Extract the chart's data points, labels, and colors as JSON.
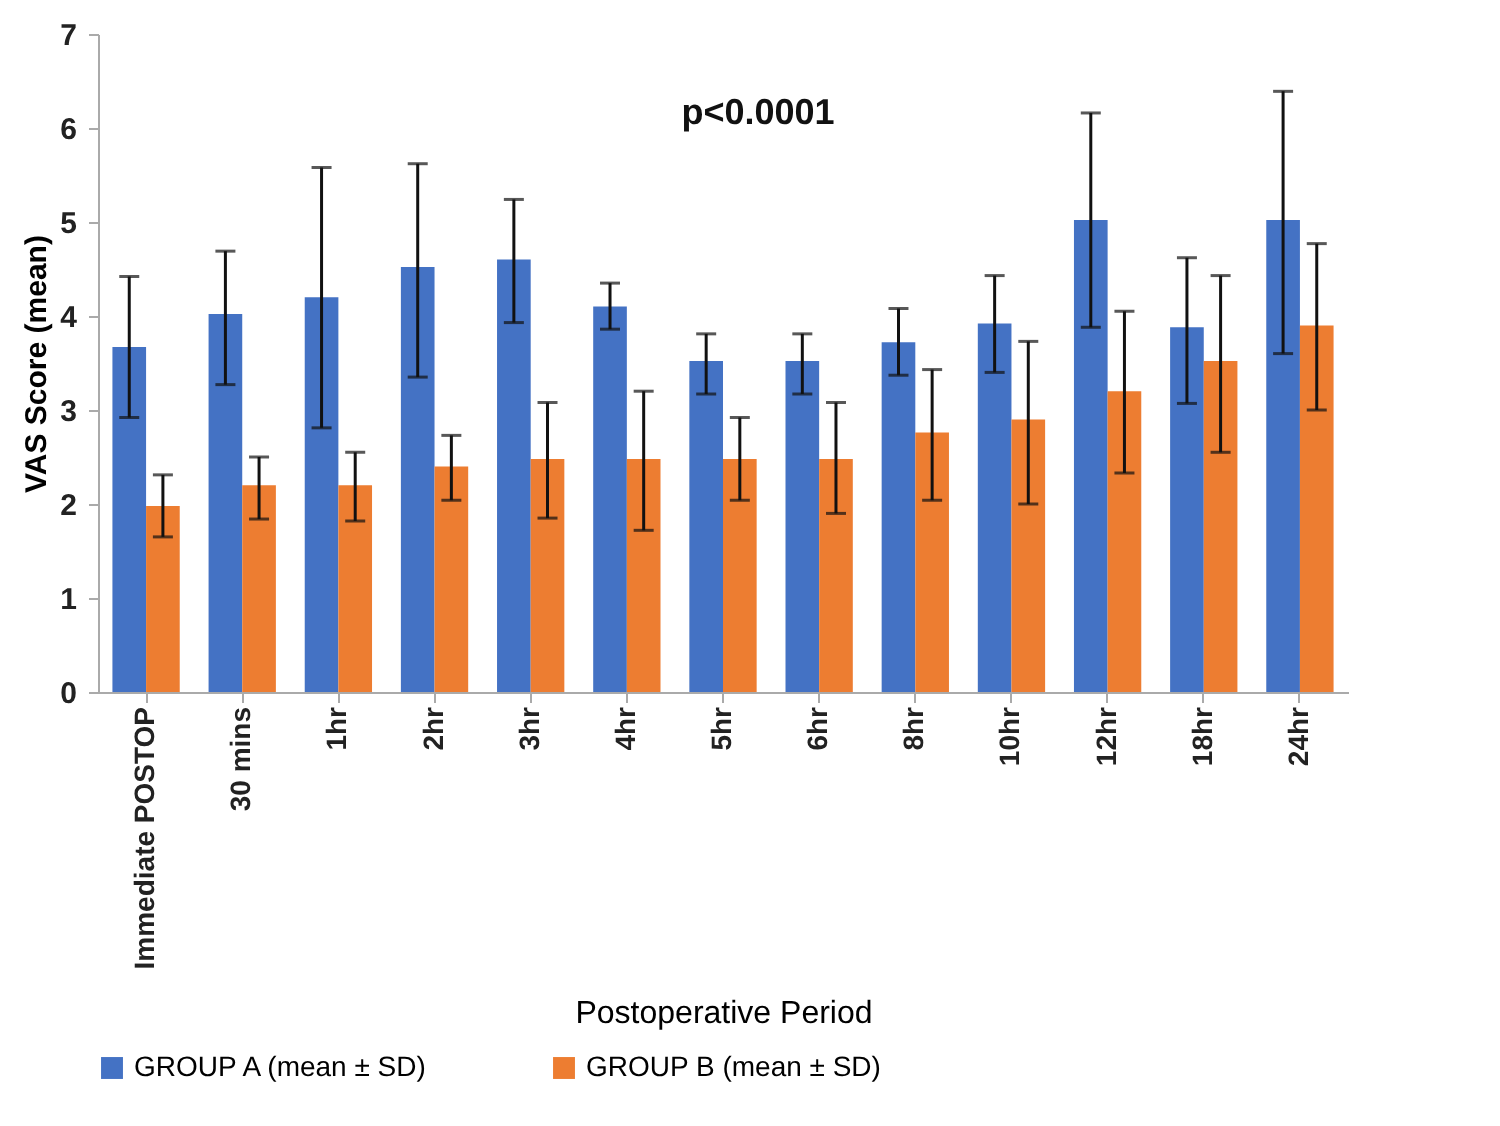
{
  "chart_data": {
    "type": "bar",
    "xlabel": "Postoperative Period",
    "ylabel": "VAS Score (mean)",
    "categories": [
      "Immediate POSTOP",
      "30 mins",
      "1hr",
      "2hr",
      "3hr",
      "4hr",
      "5hr",
      "6hr",
      "8hr",
      "10hr",
      "12hr",
      "18hr",
      "24hr"
    ],
    "series": [
      {
        "name": "GROUP A (mean ± SD)",
        "color": "#4472c4",
        "values": [
          3.67,
          4.02,
          4.2,
          4.52,
          4.6,
          4.1,
          3.52,
          3.52,
          3.72,
          3.92,
          5.02,
          3.88,
          5.02
        ],
        "errors": [
          [
            2.92,
            4.42
          ],
          [
            3.27,
            4.69
          ],
          [
            2.81,
            5.58
          ],
          [
            3.35,
            5.62
          ],
          [
            3.93,
            5.24
          ],
          [
            3.86,
            4.35
          ],
          [
            3.17,
            3.81
          ],
          [
            3.17,
            3.81
          ],
          [
            3.37,
            4.08
          ],
          [
            3.4,
            4.43
          ],
          [
            3.88,
            6.16
          ],
          [
            3.07,
            4.62
          ],
          [
            3.6,
            6.39
          ]
        ]
      },
      {
        "name": "GROUP B (mean ± SD)",
        "color": "#ed7d31",
        "values": [
          1.98,
          2.2,
          2.2,
          2.4,
          2.48,
          2.48,
          2.48,
          2.48,
          2.76,
          2.9,
          3.2,
          3.52,
          3.9
        ],
        "errors": [
          [
            1.65,
            2.31
          ],
          [
            1.84,
            2.5
          ],
          [
            1.82,
            2.55
          ],
          [
            2.04,
            2.73
          ],
          [
            1.85,
            3.08
          ],
          [
            1.72,
            3.2
          ],
          [
            2.04,
            2.92
          ],
          [
            1.9,
            3.08
          ],
          [
            2.04,
            3.43
          ],
          [
            2.0,
            3.73
          ],
          [
            2.33,
            4.05
          ],
          [
            2.55,
            4.43
          ],
          [
            3.0,
            4.77
          ]
        ]
      }
    ],
    "ylim": [
      0,
      7
    ],
    "yticks": [
      0,
      1,
      2,
      3,
      4,
      5,
      6,
      7
    ],
    "annotations": [
      "p<0.0001"
    ],
    "legend": "bottom"
  }
}
